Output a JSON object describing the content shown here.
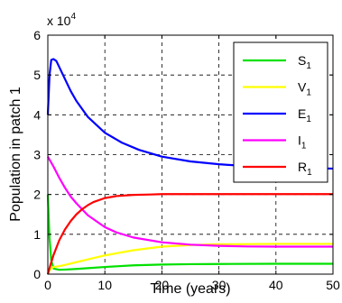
{
  "chart_data": {
    "type": "line",
    "xlabel": "Time (years)",
    "ylabel": "Population in patch 1",
    "xlim": [
      0,
      50
    ],
    "ylim": [
      0,
      60000
    ],
    "x_ticks": [
      0,
      10,
      20,
      30,
      40,
      50
    ],
    "y_ticks": [
      0,
      10000,
      20000,
      30000,
      40000,
      50000,
      60000
    ],
    "x_tick_labels": [
      "0",
      "10",
      "20",
      "30",
      "40",
      "50"
    ],
    "y_tick_labels": [
      "0",
      "1",
      "2",
      "3",
      "4",
      "5",
      "6"
    ],
    "y_multiplier": {
      "base": "x 10",
      "exponent": "4"
    },
    "grid": true,
    "legend_position": "top-right",
    "series": [
      {
        "name": "S",
        "subscript": "1",
        "color": "#00e000",
        "x": [
          0,
          0.3,
          0.6,
          1,
          2,
          3,
          5,
          7,
          10,
          15,
          20,
          25,
          30,
          40,
          50
        ],
        "y": [
          20000,
          9000,
          3500,
          1400,
          1100,
          1150,
          1300,
          1500,
          1800,
          2200,
          2400,
          2500,
          2550,
          2600,
          2600
        ]
      },
      {
        "name": "V",
        "subscript": "1",
        "color": "#ffff00",
        "x": [
          0,
          0.3,
          0.6,
          1,
          2,
          3,
          5,
          7,
          10,
          15,
          20,
          25,
          30,
          40,
          50
        ],
        "y": [
          0,
          1000,
          1500,
          1800,
          2000,
          2300,
          3000,
          3700,
          4700,
          6000,
          6900,
          7300,
          7500,
          7600,
          7600
        ]
      },
      {
        "name": "E",
        "subscript": "1",
        "color": "#0000ff",
        "x": [
          0,
          0.3,
          0.6,
          1,
          1.5,
          2,
          3,
          4,
          5,
          7,
          10,
          13,
          16,
          20,
          25,
          30,
          35,
          40,
          45,
          50
        ],
        "y": [
          40000,
          50000,
          53800,
          54000,
          53500,
          52000,
          49000,
          46000,
          43500,
          39500,
          35500,
          33000,
          31200,
          29500,
          28300,
          27600,
          27100,
          26800,
          26600,
          26500
        ]
      },
      {
        "name": "I",
        "subscript": "1",
        "color": "#ff00ff",
        "x": [
          0,
          1,
          2,
          3,
          4,
          5,
          7,
          10,
          12,
          15,
          20,
          25,
          30,
          35,
          40,
          50
        ],
        "y": [
          29500,
          27000,
          24200,
          21700,
          19500,
          17800,
          14800,
          11800,
          10500,
          9200,
          8000,
          7400,
          7100,
          6950,
          6900,
          6900
        ]
      },
      {
        "name": "R",
        "subscript": "1",
        "color": "#ff0000",
        "x": [
          0,
          0.5,
          1,
          2,
          3,
          4,
          5,
          6,
          7,
          8,
          10,
          12,
          15,
          18,
          20,
          25,
          30,
          40,
          50
        ],
        "y": [
          0,
          2500,
          4800,
          8500,
          11200,
          13300,
          15000,
          16300,
          17300,
          18100,
          19100,
          19600,
          19900,
          20000,
          20100,
          20100,
          20100,
          20100,
          20100
        ]
      }
    ]
  }
}
